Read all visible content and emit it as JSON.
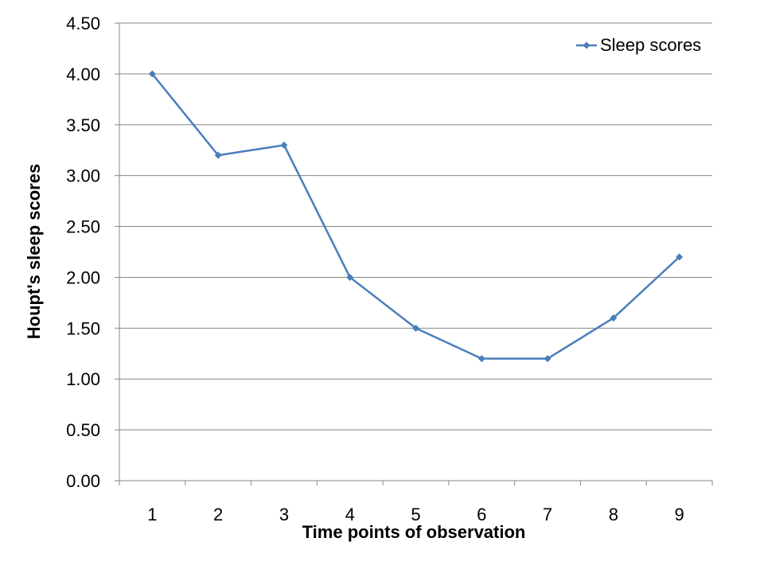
{
  "chart_data": {
    "type": "line",
    "categories": [
      "1",
      "2",
      "3",
      "4",
      "5",
      "6",
      "7",
      "8",
      "9"
    ],
    "series": [
      {
        "name": "Sleep scores",
        "values": [
          4.0,
          3.2,
          3.3,
          2.0,
          1.5,
          1.2,
          1.2,
          1.6,
          2.2
        ],
        "color": "#4A7EBB"
      }
    ],
    "xlabel": "Time points of observation",
    "ylabel": "Houpt's sleep scores",
    "ylim": [
      0,
      4.5
    ],
    "yticks": [
      "0.00",
      "0.50",
      "1.00",
      "1.50",
      "2.00",
      "2.50",
      "3.00",
      "3.50",
      "4.00",
      "4.50"
    ],
    "grid": true,
    "legend_position": "top-right",
    "marker": "diamond"
  }
}
